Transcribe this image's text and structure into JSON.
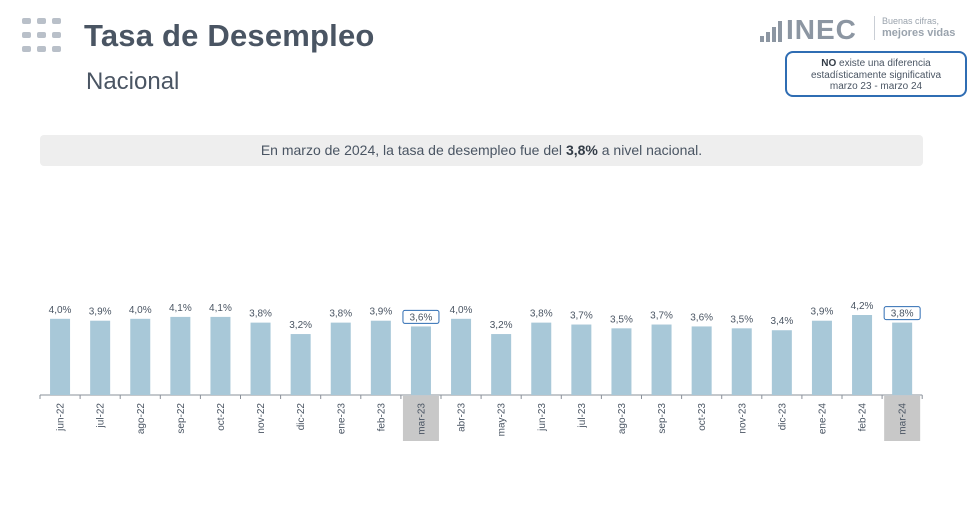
{
  "header": {
    "title": "Tasa de Desempleo",
    "subtitle": "Nacional"
  },
  "logo": {
    "wordmark": "INEC",
    "tagline_1": "Buenas cifras,",
    "tagline_2": "mejores vidas"
  },
  "note": {
    "bold": "NO",
    "line_1_rest": " existe una diferencia",
    "line_2": "estadísticamente significativa",
    "line_3": "marzo 23 - marzo 24"
  },
  "banner": {
    "before": "En marzo de 2024, la tasa de desempleo fue del ",
    "value": "3,8%",
    "after": " a nivel nacional."
  },
  "colors": {
    "bar": "#a8c8d8",
    "highlight_bg": "#c8c8c8",
    "highlight_border": "#2f6db3",
    "text": "#4a5563",
    "axis": "#8a9099"
  },
  "chart_data": {
    "type": "bar",
    "title": "",
    "xlabel": "",
    "ylabel": "",
    "categories": [
      "jun-22",
      "jul-22",
      "ago-22",
      "sep-22",
      "oct-22",
      "nov-22",
      "dic-22",
      "ene-23",
      "feb-23",
      "mar-23",
      "abr-23",
      "may-23",
      "jun-23",
      "jul-23",
      "ago-23",
      "sep-23",
      "oct-23",
      "nov-23",
      "dic-23",
      "ene-24",
      "feb-24",
      "mar-24"
    ],
    "values": [
      4.0,
      3.9,
      4.0,
      4.1,
      4.1,
      3.8,
      3.2,
      3.8,
      3.9,
      3.6,
      4.0,
      3.2,
      3.8,
      3.7,
      3.5,
      3.7,
      3.6,
      3.5,
      3.4,
      3.9,
      4.2,
      3.8
    ],
    "labels": [
      "4,0%",
      "3,9%",
      "4,0%",
      "4,1%",
      "4,1%",
      "3,8%",
      "3,2%",
      "3,8%",
      "3,9%",
      "3,6%",
      "4,0%",
      "3,2%",
      "3,8%",
      "3,7%",
      "3,5%",
      "3,7%",
      "3,6%",
      "3,5%",
      "3,4%",
      "3,9%",
      "4,2%",
      "3,8%"
    ],
    "highlighted": [
      "mar-23",
      "mar-24"
    ],
    "ylim": [
      0,
      4.2
    ],
    "grid": false,
    "legend": "none"
  }
}
